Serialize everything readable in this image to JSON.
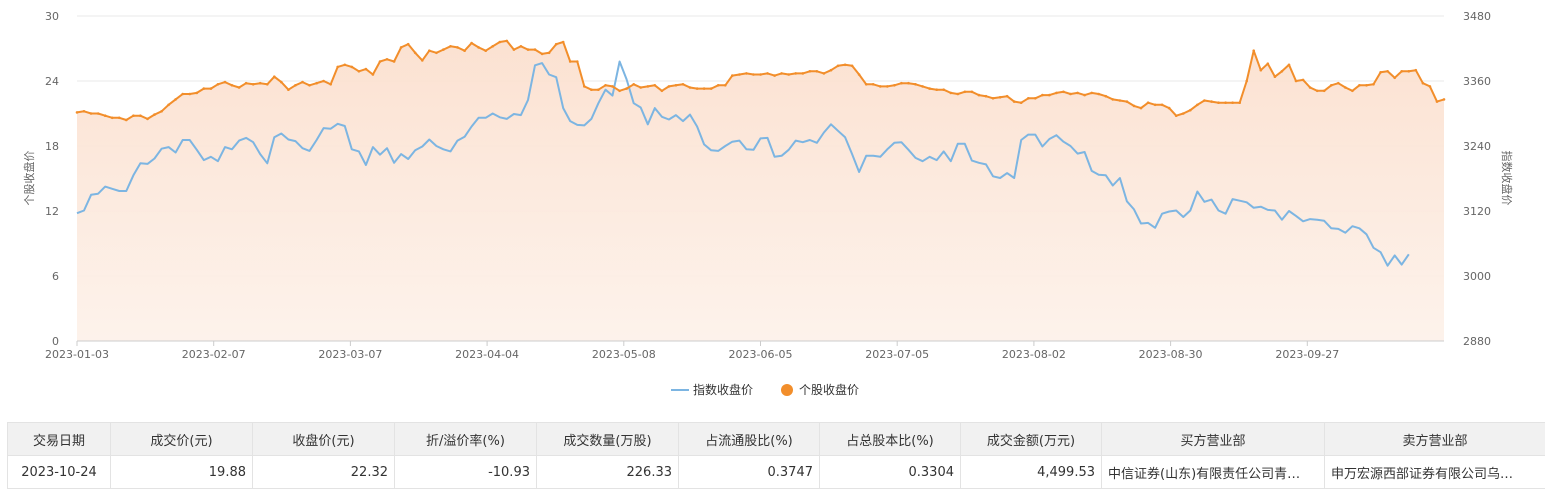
{
  "chart_data": {
    "type": "line",
    "x_tick_labels": [
      "2023-01-03",
      "2023-02-07",
      "2023-03-07",
      "2023-04-04",
      "2023-05-08",
      "2023-06-05",
      "2023-07-05",
      "2023-08-02",
      "2023-08-30",
      "2023-09-27"
    ],
    "y_left": {
      "label": "个股收盘价",
      "ticks": [
        "0",
        "6",
        "12",
        "18",
        "24",
        "30"
      ],
      "lim": [
        0,
        30
      ]
    },
    "y_right": {
      "label": "指数收盘价",
      "ticks": [
        "2880",
        "3000",
        "3120",
        "3240",
        "3360",
        "3480"
      ],
      "lim": [
        2880,
        3480
      ]
    },
    "legend_position": "bottom-center",
    "series": [
      {
        "name": "指数收盘价",
        "axis": "right",
        "color": "#7cb5e2",
        "values": [
          3116,
          3121,
          3150,
          3152,
          3165,
          3161,
          3157,
          3157,
          3186,
          3208,
          3207,
          3217,
          3235,
          3238,
          3228,
          3251,
          3251,
          3233,
          3214,
          3220,
          3212,
          3238,
          3234,
          3250,
          3255,
          3247,
          3225,
          3208,
          3256,
          3263,
          3252,
          3249,
          3236,
          3231,
          3251,
          3273,
          3272,
          3281,
          3277,
          3234,
          3230,
          3205,
          3238,
          3224,
          3236,
          3209,
          3225,
          3216,
          3232,
          3239,
          3252,
          3240,
          3234,
          3230,
          3250,
          3257,
          3276,
          3292,
          3292,
          3300,
          3293,
          3290,
          3299,
          3297,
          3325,
          3389,
          3393,
          3372,
          3367,
          3310,
          3286,
          3279,
          3278,
          3290,
          3319,
          3344,
          3333,
          3396,
          3363,
          3319,
          3311,
          3280,
          3310,
          3294,
          3289,
          3297,
          3286,
          3298,
          3276,
          3243,
          3232,
          3231,
          3240,
          3248,
          3250,
          3234,
          3233,
          3254,
          3255,
          3220,
          3222,
          3233,
          3250,
          3247,
          3251,
          3246,
          3265,
          3280,
          3268,
          3256,
          3225,
          3192,
          3222,
          3222,
          3220,
          3234,
          3246,
          3247,
          3233,
          3218,
          3212,
          3220,
          3214,
          3230,
          3212,
          3244,
          3244,
          3213,
          3209,
          3206,
          3184,
          3181,
          3190,
          3181,
          3251,
          3261,
          3261,
          3239,
          3253,
          3260,
          3248,
          3240,
          3226,
          3229,
          3194,
          3187,
          3186,
          3167,
          3181,
          3138,
          3123,
          3097,
          3098,
          3089,
          3115,
          3119,
          3121,
          3109,
          3121,
          3156,
          3137,
          3141,
          3121,
          3115,
          3142,
          3139,
          3136,
          3126,
          3128,
          3122,
          3121,
          3104,
          3120,
          3111,
          3101,
          3105,
          3104,
          3102,
          3088,
          3087,
          3080,
          3092,
          3088,
          3077,
          3052,
          3044,
          3019,
          3038,
          3021,
          3040
        ]
      },
      {
        "name": "个股收盘价",
        "axis": "left",
        "color": "#f28e2b",
        "markers": true,
        "values": [
          21.1,
          21.2,
          21.0,
          21.0,
          20.8,
          20.6,
          20.6,
          20.4,
          20.8,
          20.8,
          20.5,
          20.9,
          21.2,
          21.8,
          22.3,
          22.8,
          22.8,
          22.9,
          23.3,
          23.3,
          23.7,
          23.9,
          23.6,
          23.4,
          23.8,
          23.7,
          23.8,
          23.7,
          24.4,
          23.9,
          23.2,
          23.6,
          23.9,
          23.6,
          23.8,
          24.0,
          23.7,
          25.3,
          25.5,
          25.3,
          24.9,
          25.1,
          24.6,
          25.8,
          26.0,
          25.8,
          27.1,
          27.4,
          26.6,
          25.9,
          26.8,
          26.6,
          26.9,
          27.2,
          27.1,
          26.8,
          27.5,
          27.1,
          26.8,
          27.2,
          27.6,
          27.7,
          26.9,
          27.2,
          26.9,
          26.9,
          26.5,
          26.6,
          27.4,
          27.6,
          25.8,
          25.8,
          23.5,
          23.2,
          23.2,
          23.6,
          23.5,
          23.1,
          23.3,
          23.7,
          23.4,
          23.5,
          23.6,
          23.1,
          23.5,
          23.6,
          23.7,
          23.4,
          23.3,
          23.3,
          23.3,
          23.6,
          23.6,
          24.5,
          24.6,
          24.7,
          24.6,
          24.6,
          24.7,
          24.5,
          24.7,
          24.6,
          24.7,
          24.7,
          24.9,
          24.9,
          24.7,
          25.0,
          25.4,
          25.5,
          25.4,
          24.6,
          23.7,
          23.7,
          23.5,
          23.5,
          23.6,
          23.8,
          23.8,
          23.7,
          23.5,
          23.3,
          23.2,
          23.2,
          22.9,
          22.8,
          23.0,
          23.0,
          22.7,
          22.6,
          22.4,
          22.5,
          22.6,
          22.1,
          22.0,
          22.4,
          22.4,
          22.7,
          22.7,
          22.9,
          23.0,
          22.8,
          22.9,
          22.7,
          22.9,
          22.8,
          22.6,
          22.3,
          22.2,
          22.1,
          21.7,
          21.5,
          22.0,
          21.8,
          21.8,
          21.5,
          20.8,
          21.0,
          21.3,
          21.8,
          22.2,
          22.1,
          22.0,
          22.0,
          22.0,
          22.0,
          24.0,
          26.8,
          25.0,
          25.6,
          24.4,
          24.9,
          25.5,
          24.0,
          24.1,
          23.4,
          23.1,
          23.1,
          23.6,
          23.8,
          23.4,
          23.1,
          23.6,
          23.6,
          23.7,
          24.8,
          24.9,
          24.3,
          24.9,
          24.9,
          25.0,
          23.8,
          23.5,
          22.1,
          22.3
        ]
      }
    ]
  },
  "table": {
    "headers": [
      "交易日期",
      "成交价(元)",
      "收盘价(元)",
      "折/溢价率(%)",
      "成交数量(万股)",
      "占流通股比(%)",
      "占总股本比(%)",
      "成交金额(万元)",
      "买方营业部",
      "卖方营业部"
    ],
    "rows": [
      [
        "2023-10-24",
        "19.88",
        "22.32",
        "-10.93",
        "226.33",
        "0.3747",
        "0.3304",
        "4,499.53",
        "中信证券(山东)有限责任公司青…",
        "申万宏源西部证券有限公司乌…"
      ]
    ]
  }
}
